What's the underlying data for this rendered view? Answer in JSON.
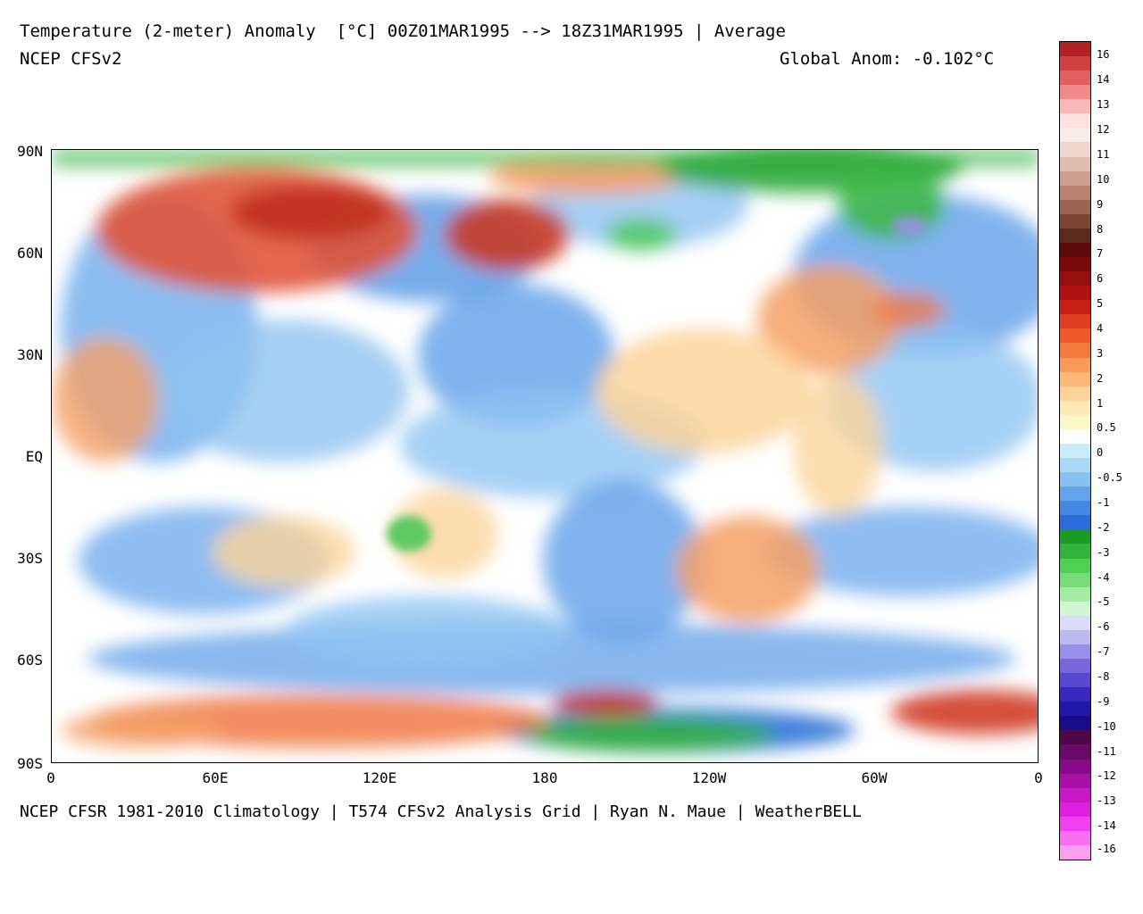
{
  "header": {
    "title": "Temperature (2-meter) Anomaly  [°C] 00Z01MAR1995 --> 18Z31MAR1995 | Average",
    "model": "NCEP CFSv2",
    "global_anomaly": "Global Anom: -0.102°C"
  },
  "footer": "NCEP CFSR 1981-2010 Climatology | T574 CFSv2 Analysis Grid | Ryan N. Maue | WeatherBELL",
  "axes": {
    "lat_ticks": [
      "90N",
      "60N",
      "30N",
      "EQ",
      "30S",
      "60S",
      "90S"
    ],
    "lon_ticks": [
      "0",
      "60E",
      "120E",
      "180",
      "120W",
      "60W",
      "0"
    ]
  },
  "legend": {
    "labels": [
      "16",
      "14",
      "13",
      "12",
      "11",
      "10",
      "9",
      "8",
      "7",
      "6",
      "5",
      "4",
      "3",
      "2",
      "1",
      "0.5",
      "0",
      "-0.5",
      "-1",
      "-2",
      "-3",
      "-4",
      "-5",
      "-6",
      "-7",
      "-8",
      "-9",
      "-10",
      "-11",
      "-12",
      "-13",
      "-14",
      "-16"
    ],
    "colors": [
      "#b22222",
      "#d04040",
      "#e06060",
      "#f08a8a",
      "#f8b8b8",
      "#fde0e0",
      "#f8ece6",
      "#eed6cc",
      "#e0bcae",
      "#cc9e8e",
      "#b8826e",
      "#9c6450",
      "#7a4634",
      "#5a2a1c",
      "#5e0a0a",
      "#7a0a0a",
      "#960e0e",
      "#b01010",
      "#c81e14",
      "#e03c1e",
      "#f05a28",
      "#f47a3c",
      "#f89a58",
      "#fcb878",
      "#fcd39a",
      "#fde9b8",
      "#fdf6c8",
      "#ffffff",
      "#c8ecf8",
      "#a8d8f4",
      "#88c0f0",
      "#64a4ec",
      "#4488e4",
      "#2c6cd8",
      "#1c9a28",
      "#30b43c",
      "#50d050",
      "#78dc78",
      "#a4eca4",
      "#d0f6d0",
      "#dcdcf8",
      "#bcb8f0",
      "#9890e8",
      "#7868dc",
      "#5848d0",
      "#3828c0",
      "#2018a8",
      "#180c88",
      "#4c0848",
      "#680a66",
      "#880a88",
      "#a810a8",
      "#c818c8",
      "#e020e0",
      "#f040f0",
      "#f870f0",
      "#f8a0f0"
    ]
  }
}
